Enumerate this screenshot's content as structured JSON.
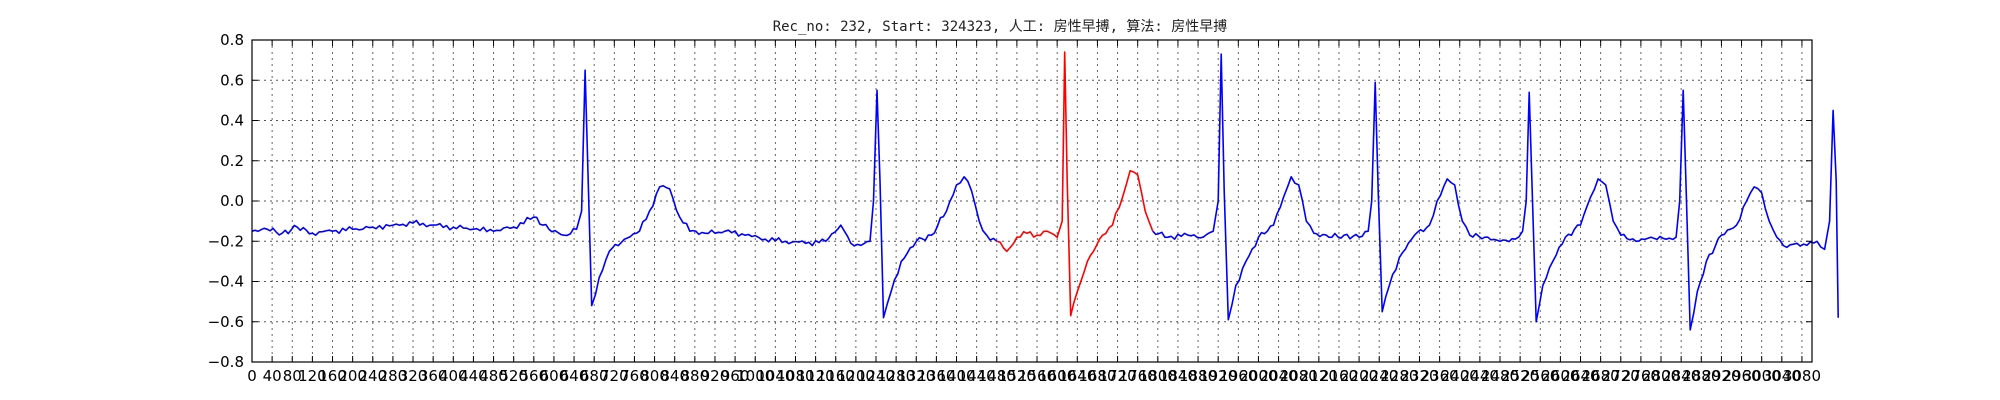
{
  "chart_data": {
    "type": "line",
    "title": "Rec_no: 232, Start: 324323, 人工: 房性早搏, 算法: 房性早搏",
    "xlabel": "",
    "ylabel": "",
    "xlim": [
      0,
      3100
    ],
    "ylim": [
      -0.8,
      0.8
    ],
    "grid": true,
    "x_ticks": [
      0,
      40,
      80,
      120,
      160,
      200,
      240,
      280,
      320,
      360,
      400,
      440,
      480,
      520,
      560,
      600,
      640,
      680,
      720,
      760,
      800,
      840,
      880,
      920,
      960,
      1000,
      1040,
      1080,
      1120,
      1160,
      1200,
      1240,
      1280,
      1320,
      1360,
      1400,
      1440,
      1480,
      1520,
      1560,
      1600,
      1640,
      1680,
      1720,
      1760,
      1800,
      1840,
      1880,
      1920,
      1960,
      2000,
      2040,
      2080,
      2120,
      2160,
      2200,
      2240,
      2280,
      2320,
      2360,
      2400,
      2440,
      2480,
      2520,
      2560,
      2600,
      2640,
      2680,
      2720,
      2760,
      2800,
      2840,
      2880,
      2920,
      2960,
      3000,
      3040,
      3080
    ],
    "y_ticks": [
      -0.8,
      -0.6,
      -0.4,
      -0.2,
      0.0,
      0.2,
      0.4,
      0.6,
      0.8
    ],
    "y_tick_labels": [
      "−0.8",
      "−0.6",
      "−0.4",
      "−0.2",
      "0.0",
      "0.2",
      "0.4",
      "0.6",
      "0.8"
    ],
    "series": [
      {
        "color": "#0000ff",
        "segment": "pre",
        "points": [
          [
            0,
            -0.15
          ],
          [
            30,
            -0.14
          ],
          [
            60,
            -0.16
          ],
          [
            90,
            -0.13
          ],
          [
            120,
            -0.16
          ],
          [
            160,
            -0.15
          ],
          [
            200,
            -0.14
          ],
          [
            240,
            -0.13
          ],
          [
            280,
            -0.12
          ],
          [
            320,
            -0.11
          ],
          [
            360,
            -0.12
          ],
          [
            400,
            -0.13
          ],
          [
            440,
            -0.14
          ],
          [
            480,
            -0.15
          ],
          [
            520,
            -0.13
          ],
          [
            560,
            -0.08
          ],
          [
            590,
            -0.14
          ],
          [
            620,
            -0.17
          ],
          [
            645,
            -0.14
          ],
          [
            655,
            -0.05
          ],
          [
            662,
            0.65
          ],
          [
            668,
            0.1
          ],
          [
            675,
            -0.52
          ],
          [
            690,
            -0.38
          ],
          [
            710,
            -0.25
          ],
          [
            740,
            -0.19
          ],
          [
            770,
            -0.15
          ],
          [
            790,
            -0.05
          ],
          [
            810,
            0.07
          ],
          [
            830,
            0.06
          ],
          [
            850,
            -0.08
          ],
          [
            870,
            -0.15
          ],
          [
            900,
            -0.16
          ],
          [
            940,
            -0.15
          ],
          [
            980,
            -0.17
          ],
          [
            1020,
            -0.19
          ],
          [
            1060,
            -0.2
          ],
          [
            1100,
            -0.21
          ],
          [
            1140,
            -0.2
          ],
          [
            1170,
            -0.12
          ],
          [
            1190,
            -0.21
          ],
          [
            1210,
            -0.22
          ],
          [
            1228,
            -0.2
          ],
          [
            1235,
            0.0
          ],
          [
            1242,
            0.55
          ],
          [
            1248,
            0.1
          ],
          [
            1255,
            -0.58
          ],
          [
            1270,
            -0.45
          ],
          [
            1290,
            -0.3
          ],
          [
            1320,
            -0.2
          ],
          [
            1350,
            -0.17
          ],
          [
            1380,
            -0.05
          ],
          [
            1400,
            0.08
          ],
          [
            1415,
            0.12
          ],
          [
            1430,
            0.05
          ],
          [
            1445,
            -0.1
          ],
          [
            1460,
            -0.17
          ],
          [
            1480,
            -0.2
          ]
        ]
      },
      {
        "color": "#ff0000",
        "segment": "premature",
        "points": [
          [
            1480,
            -0.2
          ],
          [
            1500,
            -0.25
          ],
          [
            1520,
            -0.18
          ],
          [
            1540,
            -0.16
          ],
          [
            1560,
            -0.17
          ],
          [
            1580,
            -0.15
          ],
          [
            1600,
            -0.18
          ],
          [
            1610,
            -0.1
          ],
          [
            1615,
            0.74
          ],
          [
            1620,
            0.1
          ],
          [
            1627,
            -0.57
          ],
          [
            1640,
            -0.45
          ],
          [
            1660,
            -0.3
          ],
          [
            1690,
            -0.17
          ],
          [
            1710,
            -0.12
          ],
          [
            1730,
            0.02
          ],
          [
            1745,
            0.15
          ],
          [
            1760,
            0.13
          ],
          [
            1775,
            -0.05
          ],
          [
            1790,
            -0.15
          ]
        ]
      },
      {
        "color": "#0000ff",
        "segment": "post",
        "points": [
          [
            1790,
            -0.15
          ],
          [
            1820,
            -0.18
          ],
          [
            1860,
            -0.17
          ],
          [
            1890,
            -0.18
          ],
          [
            1910,
            -0.15
          ],
          [
            1920,
            0.0
          ],
          [
            1926,
            0.73
          ],
          [
            1932,
            0.05
          ],
          [
            1940,
            -0.59
          ],
          [
            1955,
            -0.42
          ],
          [
            1975,
            -0.3
          ],
          [
            2000,
            -0.18
          ],
          [
            2030,
            -0.12
          ],
          [
            2050,
            0.02
          ],
          [
            2065,
            0.12
          ],
          [
            2080,
            0.08
          ],
          [
            2095,
            -0.1
          ],
          [
            2110,
            -0.16
          ],
          [
            2140,
            -0.18
          ],
          [
            2170,
            -0.17
          ],
          [
            2200,
            -0.18
          ],
          [
            2218,
            -0.15
          ],
          [
            2225,
            0.0
          ],
          [
            2232,
            0.59
          ],
          [
            2238,
            0.05
          ],
          [
            2246,
            -0.55
          ],
          [
            2260,
            -0.42
          ],
          [
            2280,
            -0.28
          ],
          [
            2310,
            -0.17
          ],
          [
            2340,
            -0.12
          ],
          [
            2355,
            0.0
          ],
          [
            2375,
            0.11
          ],
          [
            2390,
            0.08
          ],
          [
            2405,
            -0.1
          ],
          [
            2420,
            -0.17
          ],
          [
            2450,
            -0.18
          ],
          [
            2480,
            -0.2
          ],
          [
            2510,
            -0.19
          ],
          [
            2525,
            -0.15
          ],
          [
            2532,
            0.0
          ],
          [
            2538,
            0.54
          ],
          [
            2544,
            0.05
          ],
          [
            2552,
            -0.6
          ],
          [
            2565,
            -0.42
          ],
          [
            2585,
            -0.3
          ],
          [
            2610,
            -0.18
          ],
          [
            2640,
            -0.12
          ],
          [
            2660,
            0.02
          ],
          [
            2675,
            0.11
          ],
          [
            2690,
            0.08
          ],
          [
            2705,
            -0.1
          ],
          [
            2720,
            -0.17
          ],
          [
            2750,
            -0.2
          ],
          [
            2780,
            -0.18
          ],
          [
            2810,
            -0.19
          ],
          [
            2830,
            -0.18
          ],
          [
            2837,
            0.0
          ],
          [
            2844,
            0.55
          ],
          [
            2850,
            0.05
          ],
          [
            2858,
            -0.64
          ],
          [
            2872,
            -0.45
          ],
          [
            2890,
            -0.3
          ],
          [
            2920,
            -0.17
          ],
          [
            2950,
            -0.12
          ],
          [
            2970,
            0.0
          ],
          [
            2985,
            0.07
          ],
          [
            3000,
            0.04
          ],
          [
            3015,
            -0.1
          ],
          [
            3030,
            -0.18
          ],
          [
            3050,
            -0.23
          ],
          [
            3070,
            -0.21
          ],
          [
            3090,
            -0.22
          ],
          [
            3110,
            -0.2
          ],
          [
            3125,
            -0.24
          ],
          [
            3135,
            -0.1
          ],
          [
            3142,
            0.45
          ],
          [
            3148,
            0.1
          ],
          [
            3152,
            -0.58
          ]
        ]
      }
    ]
  }
}
